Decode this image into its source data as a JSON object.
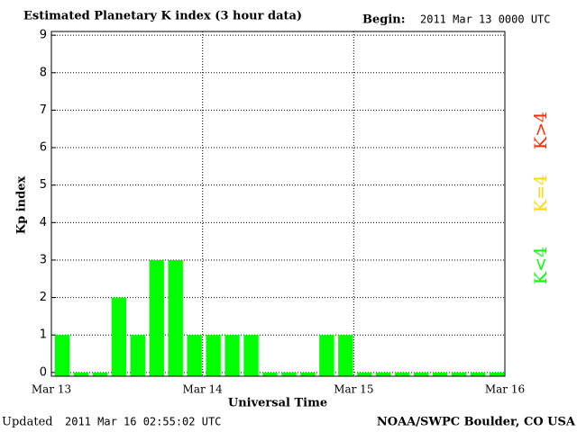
{
  "chart_data": {
    "type": "bar",
    "title": "Estimated Planetary K index (3 hour data)",
    "begin_label": "Begin:",
    "begin_value": "2011 Mar 13 0000 UTC",
    "y_label": "Kp index",
    "x_label": "Universal Time",
    "updated_label": "Updated",
    "updated_value": "2011 Mar 16 02:55:02 UTC",
    "source": "NOAA/SWPC Boulder, CO USA",
    "categories": [
      null,
      null,
      null,
      null,
      null,
      null,
      null,
      null,
      null,
      null,
      null,
      null,
      null,
      null,
      null,
      null,
      null,
      null,
      null,
      null,
      null,
      null,
      null,
      null
    ],
    "values": [
      1,
      0,
      0,
      2,
      1,
      3,
      3,
      1,
      1,
      1,
      1,
      0,
      0,
      0,
      1,
      1,
      0,
      0,
      0,
      0,
      0,
      0,
      0,
      0
    ],
    "color": "#00ff00",
    "ylim": [
      -0.1,
      9.1
    ],
    "yticks": [
      0,
      1,
      2,
      3,
      4,
      5,
      6,
      7,
      8,
      9
    ],
    "xlim": [
      0,
      24
    ],
    "xticks": [
      {
        "value": 0,
        "label": "Mar 13"
      },
      {
        "value": 8,
        "label": "Mar 14"
      },
      {
        "value": 16,
        "label": "Mar 15"
      },
      {
        "value": 24,
        "label": "Mar 16"
      }
    ],
    "grid": true,
    "legend": [
      {
        "label": "K<4",
        "color": "#00ff00"
      },
      {
        "label": "K=4",
        "color": "#ffd700"
      },
      {
        "label": "K>4",
        "color": "#ff2a00"
      }
    ]
  }
}
